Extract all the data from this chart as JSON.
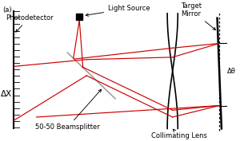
{
  "title": "(a)",
  "background": "#ffffff",
  "labels": {
    "light_source": "Light Source",
    "photodetector": "Photodetector",
    "beamsplitter": "50-50 Beamsplitter",
    "target_mirror": "Target\nMirror",
    "collimating_lens": "Collimating Lens",
    "delta_x": "ΔX",
    "delta_theta": "Δθ"
  },
  "colors": {
    "red": "#cc0000",
    "black": "#000000",
    "gray": "#999999"
  },
  "xlim": [
    0,
    10
  ],
  "ylim": [
    0,
    6
  ],
  "figsize": [
    3.0,
    1.77
  ],
  "dpi": 100
}
